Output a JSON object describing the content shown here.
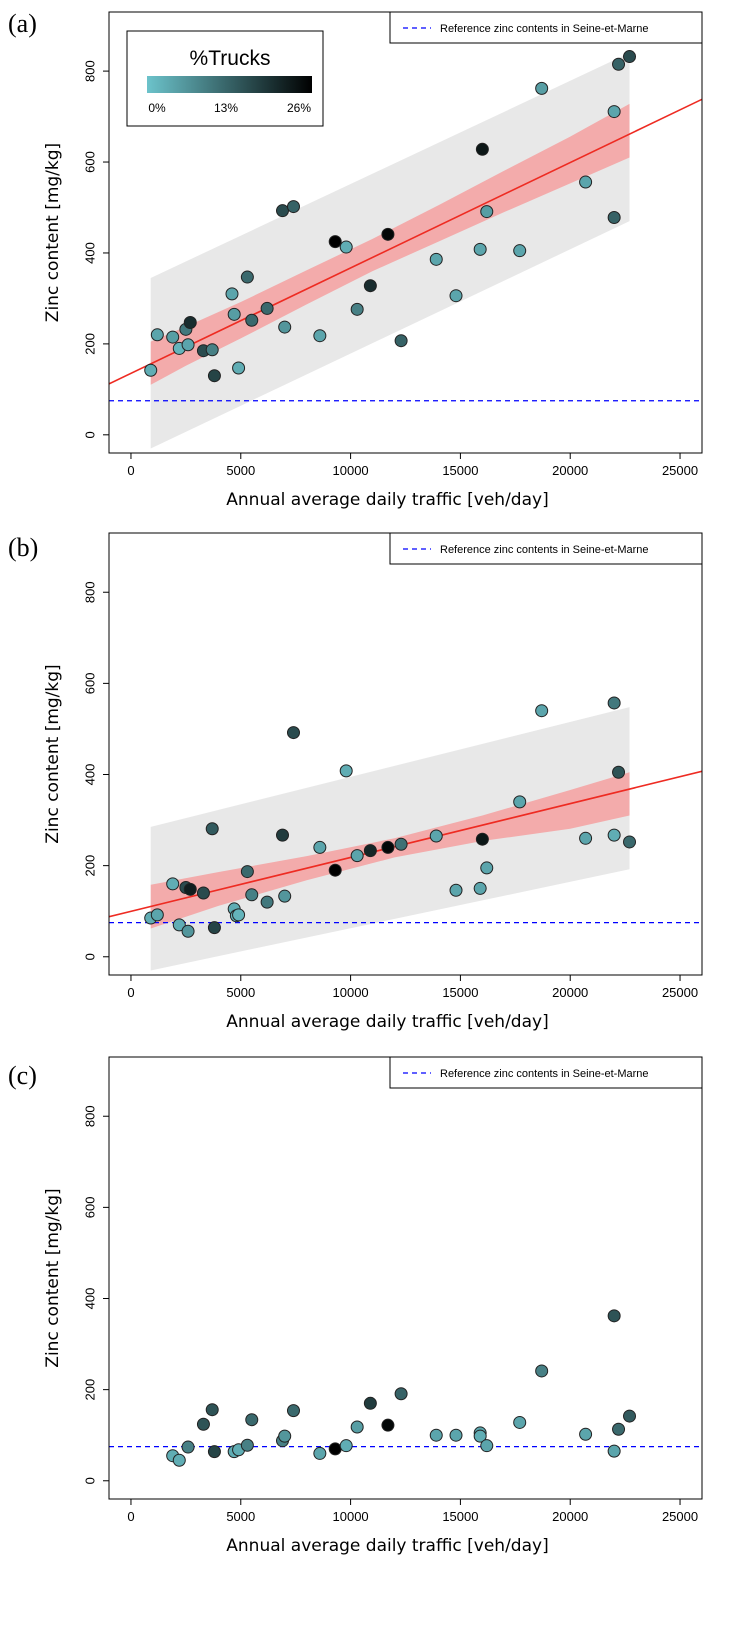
{
  "chart_data": [
    {
      "panel": "(a)",
      "type": "scatter",
      "xlabel": "Annual average daily traffic [veh/day]",
      "ylabel": "Zinc content [mg/kg]",
      "xlim": [
        -1000,
        26000
      ],
      "ylim": [
        -40,
        930
      ],
      "xticks": [
        0,
        5000,
        10000,
        15000,
        20000,
        25000
      ],
      "yticks": [
        0,
        200,
        400,
        600,
        800
      ],
      "legend": {
        "text": "Reference zinc contents in Seine-et-Marne",
        "position": "top-right"
      },
      "color_key": {
        "title": "%Trucks",
        "labels": [
          "0%",
          "13%",
          "26%"
        ],
        "range": [
          0,
          26
        ],
        "colors": [
          "#6cc3cb",
          "#000000"
        ],
        "position": "top-left"
      },
      "reference_line": {
        "y": 75,
        "color": "#0000ff",
        "style": "dashed"
      },
      "fit_line": {
        "x": [
          -1000,
          26000
        ],
        "y": [
          112,
          738
        ],
        "color": "#ee2b22"
      },
      "confidence_band": {
        "x": [
          900,
          2500,
          5000,
          8000,
          11000,
          14000,
          17000,
          20000,
          22700
        ],
        "upper": [
          205,
          238,
          292,
          362,
          431,
          505,
          581,
          656,
          728
        ],
        "lower": [
          110,
          152,
          212,
          287,
          360,
          425,
          490,
          553,
          610
        ],
        "color": "#f4a0a0"
      },
      "prediction_band": {
        "x": [
          900,
          22700
        ],
        "upper": [
          345,
          840
        ],
        "lower": [
          -30,
          470
        ],
        "color": "#e8e8e8"
      },
      "points": [
        {
          "x": 900,
          "y": 142,
          "trucks": 3
        },
        {
          "x": 1200,
          "y": 220,
          "trucks": 4
        },
        {
          "x": 1900,
          "y": 215,
          "trucks": 5
        },
        {
          "x": 2200,
          "y": 190,
          "trucks": 2
        },
        {
          "x": 2500,
          "y": 232,
          "trucks": 10
        },
        {
          "x": 2600,
          "y": 198,
          "trucks": 4
        },
        {
          "x": 2700,
          "y": 247,
          "trucks": 20
        },
        {
          "x": 3300,
          "y": 185,
          "trucks": 16
        },
        {
          "x": 3700,
          "y": 187,
          "trucks": 9
        },
        {
          "x": 3800,
          "y": 130,
          "trucks": 17
        },
        {
          "x": 4600,
          "y": 310,
          "trucks": 4
        },
        {
          "x": 4700,
          "y": 265,
          "trucks": 5
        },
        {
          "x": 4900,
          "y": 147,
          "trucks": 3
        },
        {
          "x": 5300,
          "y": 347,
          "trucks": 12
        },
        {
          "x": 5500,
          "y": 252,
          "trucks": 12
        },
        {
          "x": 6200,
          "y": 278,
          "trucks": 12
        },
        {
          "x": 6900,
          "y": 493,
          "trucks": 16
        },
        {
          "x": 7000,
          "y": 237,
          "trucks": 6
        },
        {
          "x": 7400,
          "y": 502,
          "trucks": 13
        },
        {
          "x": 8600,
          "y": 218,
          "trucks": 4
        },
        {
          "x": 9300,
          "y": 425,
          "trucks": 26
        },
        {
          "x": 9800,
          "y": 413,
          "trucks": 3
        },
        {
          "x": 10300,
          "y": 276,
          "trucks": 9
        },
        {
          "x": 10900,
          "y": 328,
          "trucks": 20
        },
        {
          "x": 11700,
          "y": 441,
          "trucks": 25
        },
        {
          "x": 12300,
          "y": 207,
          "trucks": 13
        },
        {
          "x": 13900,
          "y": 386,
          "trucks": 4
        },
        {
          "x": 14800,
          "y": 306,
          "trucks": 4
        },
        {
          "x": 15900,
          "y": 408,
          "trucks": 4
        },
        {
          "x": 16000,
          "y": 628,
          "trucks": 23
        },
        {
          "x": 16200,
          "y": 491,
          "trucks": 5
        },
        {
          "x": 17700,
          "y": 405,
          "trucks": 4
        },
        {
          "x": 18700,
          "y": 762,
          "trucks": 5
        },
        {
          "x": 20700,
          "y": 556,
          "trucks": 4
        },
        {
          "x": 22000,
          "y": 478,
          "trucks": 13
        },
        {
          "x": 22000,
          "y": 711,
          "trucks": 4
        },
        {
          "x": 22200,
          "y": 815,
          "trucks": 13
        },
        {
          "x": 22700,
          "y": 832,
          "trucks": 16
        }
      ]
    },
    {
      "panel": "(b)",
      "type": "scatter",
      "xlabel": "Annual average daily traffic [veh/day]",
      "ylabel": "Zinc content [mg/kg]",
      "xlim": [
        -1000,
        26000
      ],
      "ylim": [
        -40,
        930
      ],
      "xticks": [
        0,
        5000,
        10000,
        15000,
        20000,
        25000
      ],
      "yticks": [
        0,
        200,
        400,
        600,
        800
      ],
      "legend": {
        "text": "Reference zinc contents in Seine-et-Marne",
        "position": "top-right"
      },
      "reference_line": {
        "y": 75,
        "color": "#0000ff",
        "style": "dashed"
      },
      "fit_line": {
        "x": [
          -1000,
          26000
        ],
        "y": [
          88,
          407
        ],
        "color": "#ee2b22"
      },
      "confidence_band": {
        "x": [
          900,
          4000,
          8000,
          12000,
          16000,
          20000,
          22700
        ],
        "upper": [
          158,
          186,
          221,
          260,
          310,
          366,
          405
        ],
        "lower": [
          62,
          112,
          168,
          218,
          254,
          281,
          310
        ],
        "color": "#f4a0a0"
      },
      "prediction_band": {
        "x": [
          900,
          22700
        ],
        "upper": [
          285,
          548
        ],
        "lower": [
          -30,
          192
        ],
        "color": "#e8e8e8"
      },
      "points": [
        {
          "x": 900,
          "y": 85,
          "trucks": 3
        },
        {
          "x": 1200,
          "y": 92,
          "trucks": 4
        },
        {
          "x": 1900,
          "y": 160,
          "trucks": 3
        },
        {
          "x": 2200,
          "y": 70,
          "trucks": 3
        },
        {
          "x": 2500,
          "y": 152,
          "trucks": 16
        },
        {
          "x": 2600,
          "y": 56,
          "trucks": 6
        },
        {
          "x": 2700,
          "y": 148,
          "trucks": 22
        },
        {
          "x": 3300,
          "y": 140,
          "trucks": 16
        },
        {
          "x": 3700,
          "y": 281,
          "trucks": 14
        },
        {
          "x": 3800,
          "y": 64,
          "trucks": 17
        },
        {
          "x": 4700,
          "y": 105,
          "trucks": 3
        },
        {
          "x": 4800,
          "y": 90,
          "trucks": 2
        },
        {
          "x": 4900,
          "y": 92,
          "trucks": 2
        },
        {
          "x": 5300,
          "y": 187,
          "trucks": 12
        },
        {
          "x": 5500,
          "y": 136,
          "trucks": 9
        },
        {
          "x": 6200,
          "y": 120,
          "trucks": 10
        },
        {
          "x": 6900,
          "y": 267,
          "trucks": 18
        },
        {
          "x": 7000,
          "y": 133,
          "trucks": 6
        },
        {
          "x": 7400,
          "y": 492,
          "trucks": 16
        },
        {
          "x": 8600,
          "y": 240,
          "trucks": 4
        },
        {
          "x": 9300,
          "y": 190,
          "trucks": 26
        },
        {
          "x": 9800,
          "y": 408,
          "trucks": 3
        },
        {
          "x": 10300,
          "y": 222,
          "trucks": 4
        },
        {
          "x": 10900,
          "y": 233,
          "trucks": 21
        },
        {
          "x": 11700,
          "y": 240,
          "trucks": 25
        },
        {
          "x": 12300,
          "y": 247,
          "trucks": 11
        },
        {
          "x": 13900,
          "y": 265,
          "trucks": 4
        },
        {
          "x": 14800,
          "y": 146,
          "trucks": 4
        },
        {
          "x": 15900,
          "y": 150,
          "trucks": 4
        },
        {
          "x": 16000,
          "y": 258,
          "trucks": 23
        },
        {
          "x": 16200,
          "y": 195,
          "trucks": 4
        },
        {
          "x": 17700,
          "y": 340,
          "trucks": 4
        },
        {
          "x": 18700,
          "y": 540,
          "trucks": 4
        },
        {
          "x": 20700,
          "y": 260,
          "trucks": 4
        },
        {
          "x": 22000,
          "y": 267,
          "trucks": 3
        },
        {
          "x": 22000,
          "y": 557,
          "trucks": 10
        },
        {
          "x": 22200,
          "y": 405,
          "trucks": 15
        },
        {
          "x": 22700,
          "y": 252,
          "trucks": 12
        }
      ]
    },
    {
      "panel": "(c)",
      "type": "scatter",
      "xlabel": "Annual average daily traffic [veh/day]",
      "ylabel": "Zinc content [mg/kg]",
      "xlim": [
        -1000,
        26000
      ],
      "ylim": [
        -40,
        930
      ],
      "xticks": [
        0,
        5000,
        10000,
        15000,
        20000,
        25000
      ],
      "yticks": [
        0,
        200,
        400,
        600,
        800
      ],
      "legend": {
        "text": "Reference zinc contents in Seine-et-Marne",
        "position": "top-right"
      },
      "reference_line": {
        "y": 75,
        "color": "#0000ff",
        "style": "dashed"
      },
      "points": [
        {
          "x": 1900,
          "y": 55,
          "trucks": 3
        },
        {
          "x": 2200,
          "y": 45,
          "trucks": 3
        },
        {
          "x": 2600,
          "y": 74,
          "trucks": 9
        },
        {
          "x": 3300,
          "y": 124,
          "trucks": 15
        },
        {
          "x": 3700,
          "y": 156,
          "trucks": 15
        },
        {
          "x": 3800,
          "y": 64,
          "trucks": 17
        },
        {
          "x": 4700,
          "y": 64,
          "trucks": 3
        },
        {
          "x": 4900,
          "y": 68,
          "trucks": 3
        },
        {
          "x": 5300,
          "y": 78,
          "trucks": 9
        },
        {
          "x": 5500,
          "y": 134,
          "trucks": 12
        },
        {
          "x": 6900,
          "y": 88,
          "trucks": 9
        },
        {
          "x": 7000,
          "y": 98,
          "trucks": 6
        },
        {
          "x": 7400,
          "y": 154,
          "trucks": 12
        },
        {
          "x": 8600,
          "y": 60,
          "trucks": 4
        },
        {
          "x": 9300,
          "y": 70,
          "trucks": 26
        },
        {
          "x": 9800,
          "y": 77,
          "trucks": 3
        },
        {
          "x": 10300,
          "y": 118,
          "trucks": 5
        },
        {
          "x": 10900,
          "y": 170,
          "trucks": 18
        },
        {
          "x": 11700,
          "y": 122,
          "trucks": 25
        },
        {
          "x": 12300,
          "y": 191,
          "trucks": 13
        },
        {
          "x": 13900,
          "y": 100,
          "trucks": 4
        },
        {
          "x": 14800,
          "y": 100,
          "trucks": 4
        },
        {
          "x": 15900,
          "y": 105,
          "trucks": 4
        },
        {
          "x": 15900,
          "y": 98,
          "trucks": 3
        },
        {
          "x": 16200,
          "y": 77,
          "trucks": 4
        },
        {
          "x": 17700,
          "y": 128,
          "trucks": 4
        },
        {
          "x": 18700,
          "y": 241,
          "trucks": 9
        },
        {
          "x": 20700,
          "y": 102,
          "trucks": 4
        },
        {
          "x": 22000,
          "y": 65,
          "trucks": 4
        },
        {
          "x": 22000,
          "y": 362,
          "trucks": 15
        },
        {
          "x": 22200,
          "y": 113,
          "trucks": 12
        },
        {
          "x": 22700,
          "y": 142,
          "trucks": 14
        }
      ]
    }
  ]
}
